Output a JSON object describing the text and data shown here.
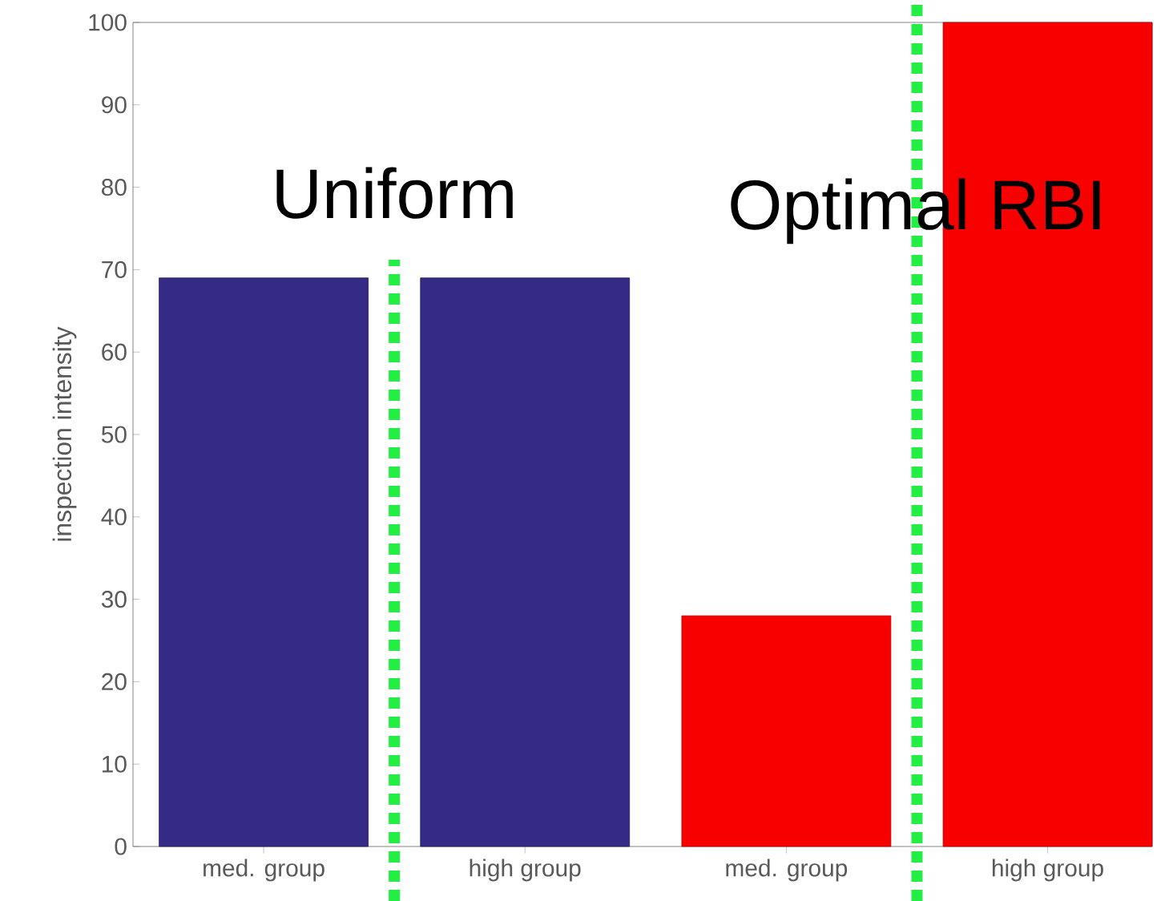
{
  "chart_data": {
    "type": "bar",
    "ylabel": "inspection intensity",
    "categories": [
      "med. group",
      "high group",
      "med. group",
      "high group"
    ],
    "values": [
      69,
      69,
      28,
      100
    ],
    "colors": [
      "#352a86",
      "#352a86",
      "#f80000",
      "#f80000"
    ],
    "ylim": [
      0,
      100
    ],
    "yticks": [
      0,
      10,
      20,
      30,
      40,
      50,
      60,
      70,
      80,
      90,
      100
    ],
    "annotations": [
      "Uniform",
      "Optimal RBI"
    ]
  }
}
